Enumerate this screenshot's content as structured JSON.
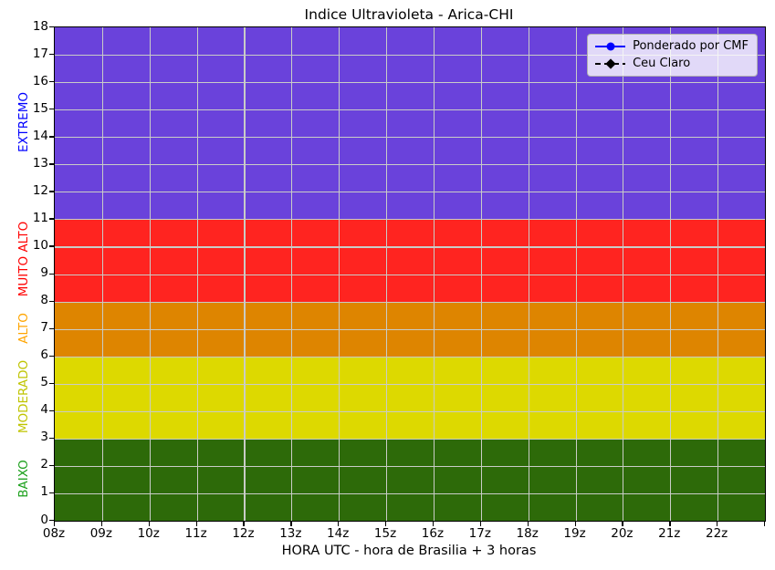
{
  "chart_data": {
    "type": "area",
    "title": "Indice Ultravioleta - Arica-CHI",
    "xlabel": "HORA UTC - hora de Brasilia + 3 horas",
    "ylabel": "",
    "x_range": [
      8,
      23
    ],
    "x_tick_hours": [
      8,
      9,
      10,
      11,
      12,
      13,
      14,
      15,
      16,
      17,
      18,
      19,
      20,
      21,
      22,
      23
    ],
    "x_tick_labels": [
      "08z",
      "09z",
      "10z",
      "11z",
      "12z",
      "13z",
      "14z",
      "15z",
      "16z",
      "17z",
      "18z",
      "19z",
      "20z",
      "21z",
      "22z",
      ""
    ],
    "ylim": [
      0,
      18
    ],
    "y_tick_step": 1,
    "grid": true,
    "grid_color": "#c9ccc7",
    "bands": [
      {
        "label": "BAIXO",
        "from": 0,
        "to": 3,
        "color": "#2d6a09",
        "label_color": "#1ca01c"
      },
      {
        "label": "MODERADO",
        "from": 3,
        "to": 6,
        "color": "#ddd900",
        "label_color": "#bfc400"
      },
      {
        "label": "ALTO",
        "from": 6,
        "to": 8,
        "color": "#de8500",
        "label_color": "#ffa500"
      },
      {
        "label": "MUITO ALTO",
        "from": 8,
        "to": 11,
        "color": "#ff2420",
        "label_color": "#ff0000"
      },
      {
        "label": "EXTREMO",
        "from": 11,
        "to": 18,
        "color": "#6a42db",
        "label_color": "#0000ff"
      }
    ],
    "legend": {
      "position": "upper right",
      "entries": [
        {
          "label": "Ponderado por CMF",
          "color": "#0000ff",
          "line": "solid",
          "marker": "circle"
        },
        {
          "label": "Ceu Claro",
          "color": "#000000",
          "line": "dashed",
          "marker": "diamond"
        }
      ]
    },
    "series": [
      {
        "name": "Ponderado por CMF",
        "values": []
      },
      {
        "name": "Ceu Claro",
        "values": []
      }
    ]
  }
}
